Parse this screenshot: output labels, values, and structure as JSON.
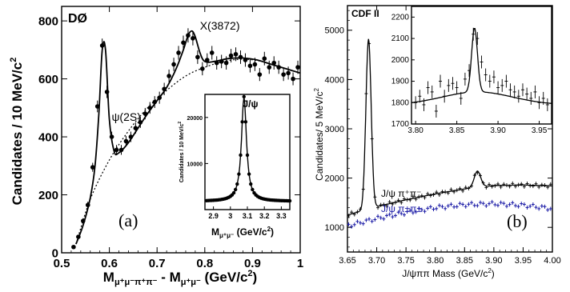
{
  "chart_data": [
    {
      "type": "scatter",
      "experiment": "DØ",
      "xlabel_main": "M",
      "xlabel_sub1": "μ⁺μ⁻π⁺π⁻",
      "xlabel_sep": " - M",
      "xlabel_sub2": "μ⁺μ⁻",
      "xlabel_unit": " (GeV/c",
      "xlabel_sup": "2",
      "xlabel_close": ")",
      "ylabel": "Candidates / 10 MeV/c",
      "ylabel_sup": "2",
      "panel_label": "(a)",
      "xlim": [
        0.5,
        1.0
      ],
      "ylim": [
        0,
        850
      ],
      "x_ticks": [
        "0.5",
        "0.6",
        "0.7",
        "0.8",
        "0.9",
        "1"
      ],
      "y_ticks": [
        "0",
        "200",
        "400",
        "600",
        "800"
      ],
      "x_tick_values": [
        0.5,
        0.6,
        0.7,
        0.8,
        0.9,
        1.0
      ],
      "y_tick_values": [
        0,
        200,
        400,
        600,
        800
      ],
      "annotations": [
        {
          "text": "ψ(2S)",
          "x": 0.588,
          "y": 455
        },
        {
          "text": "X(3872)",
          "x": 0.773,
          "y": 770
        }
      ],
      "series": [
        {
          "values_x": [
            0.525,
            0.535,
            0.545,
            0.555,
            0.565,
            0.575,
            0.585,
            0.595,
            0.605,
            0.615,
            0.625,
            0.635,
            0.645,
            0.655,
            0.665,
            0.675,
            0.685,
            0.695,
            0.705,
            0.715,
            0.725,
            0.735,
            0.745,
            0.755,
            0.765,
            0.775,
            0.785,
            0.795,
            0.805,
            0.815,
            0.825,
            0.835,
            0.845,
            0.855,
            0.865,
            0.875,
            0.885,
            0.895,
            0.905,
            0.915,
            0.925,
            0.935,
            0.945,
            0.955,
            0.965,
            0.975,
            0.985,
            0.995
          ],
          "values_y": [
            20,
            55,
            110,
            165,
            295,
            505,
            715,
            555,
            400,
            355,
            355,
            385,
            400,
            430,
            450,
            480,
            500,
            520,
            535,
            565,
            610,
            650,
            690,
            725,
            750,
            740,
            675,
            635,
            665,
            690,
            655,
            660,
            655,
            680,
            685,
            675,
            665,
            645,
            650,
            615,
            670,
            640,
            655,
            640,
            615,
            620,
            600,
            640
          ]
        }
      ],
      "fit_x": [
        0.53,
        0.545,
        0.56,
        0.57,
        0.578,
        0.585,
        0.592,
        0.6,
        0.61,
        0.62,
        0.64,
        0.66,
        0.68,
        0.7,
        0.72,
        0.74,
        0.755,
        0.765,
        0.773,
        0.78,
        0.79,
        0.8,
        0.82,
        0.85,
        0.88,
        0.91,
        0.94,
        0.97,
        1.0
      ],
      "fit_y": [
        30,
        95,
        190,
        300,
        480,
        700,
        700,
        460,
        350,
        345,
        380,
        430,
        480,
        525,
        570,
        635,
        700,
        750,
        765,
        745,
        690,
        660,
        660,
        670,
        672,
        665,
        650,
        635,
        620
      ],
      "bg_x": [
        0.53,
        0.56,
        0.6,
        0.64,
        0.68,
        0.72,
        0.76,
        0.8,
        0.84,
        0.88,
        0.92,
        0.96,
        1.0
      ],
      "bg_y": [
        30,
        185,
        320,
        420,
        500,
        560,
        610,
        640,
        660,
        668,
        660,
        640,
        620
      ],
      "inset": {
        "title": "J/ψ",
        "ylabel": "Candidates / 10 MeV/c",
        "ylabel_sup": "2",
        "xlabel_main": "M",
        "xlabel_sub": "μ⁺μ⁻",
        "xlabel_unit": " (GeV/c",
        "xlabel_sup": "2",
        "xlabel_close": ")",
        "xlim": [
          2.85,
          3.35
        ],
        "ylim": [
          0,
          25000
        ],
        "x_ticks": [
          "2.9",
          "3",
          "3.1",
          "3.2",
          "3.3"
        ],
        "x_tick_values": [
          2.9,
          3.0,
          3.1,
          3.2,
          3.3
        ],
        "y_ticks": [
          "10000",
          "20000"
        ],
        "y_tick_values": [
          10000,
          20000
        ],
        "peak": 3.08,
        "peak_height": 24500,
        "width": 0.045,
        "base": 1800
      }
    },
    {
      "type": "scatter",
      "experiment": "CDF II",
      "xlabel": "J/ψππ Mass  (GeV/c",
      "xlabel_sup": "2",
      "xlabel_close": ")",
      "ylabel": "Candidates/ 5 MeV/c",
      "ylabel_sup": "2",
      "panel_label": "(b)",
      "xlim": [
        3.65,
        4.0
      ],
      "ylim": [
        500,
        5500
      ],
      "x_ticks": [
        "3.65",
        "3.70",
        "3.75",
        "3.80",
        "3.85",
        "3.90",
        "3.95",
        "4.00"
      ],
      "x_tick_values": [
        3.65,
        3.7,
        3.75,
        3.8,
        3.85,
        3.9,
        3.95,
        4.0
      ],
      "y_ticks": [
        "1000",
        "2000",
        "3000",
        "4000",
        "5000"
      ],
      "y_tick_values": [
        1000,
        2000,
        3000,
        4000,
        5000
      ],
      "series": [
        {
          "name": "J/ψ π⁺π⁻",
          "color": "#000000"
        },
        {
          "name": "J/ψ π±π±",
          "color": "#1a1aa6"
        }
      ],
      "os_bg": [
        [
          3.65,
          1250
        ],
        [
          3.7,
          1420
        ],
        [
          3.75,
          1560
        ],
        [
          3.8,
          1680
        ],
        [
          3.85,
          1780
        ],
        [
          3.9,
          1850
        ],
        [
          3.95,
          1860
        ],
        [
          4.0,
          1840
        ]
      ],
      "os_peaks": [
        {
          "x": 3.686,
          "h": 3450,
          "w": 0.0045
        },
        {
          "x": 3.872,
          "h": 330,
          "w": 0.0055
        }
      ],
      "ss_base": [
        [
          3.65,
          1030
        ],
        [
          3.7,
          1180
        ],
        [
          3.75,
          1300
        ],
        [
          3.8,
          1400
        ],
        [
          3.85,
          1460
        ],
        [
          3.9,
          1480
        ],
        [
          3.95,
          1450
        ],
        [
          4.0,
          1380
        ]
      ],
      "inset": {
        "xlim": [
          3.795,
          3.965
        ],
        "ylim": [
          1700,
          2250
        ],
        "x_ticks": [
          "3.80",
          "3.85",
          "3.90",
          "3.95"
        ],
        "x_tick_values": [
          3.8,
          3.85,
          3.9,
          3.95
        ],
        "y_ticks": [
          "1700",
          "1800",
          "1900",
          "2000",
          "2100",
          "2200"
        ],
        "y_tick_values": [
          1700,
          1800,
          1900,
          2000,
          2100,
          2200
        ],
        "data_x": [
          3.8,
          3.805,
          3.81,
          3.815,
          3.82,
          3.825,
          3.83,
          3.835,
          3.84,
          3.845,
          3.85,
          3.855,
          3.86,
          3.865,
          3.87,
          3.875,
          3.88,
          3.885,
          3.89,
          3.895,
          3.9,
          3.905,
          3.91,
          3.915,
          3.92,
          3.925,
          3.93,
          3.935,
          3.94,
          3.945,
          3.95,
          3.955,
          3.96
        ],
        "data_y": [
          1800,
          1830,
          1790,
          1870,
          1850,
          1760,
          1900,
          1830,
          1880,
          1890,
          1870,
          1820,
          1910,
          1950,
          2120,
          2100,
          1990,
          1930,
          1900,
          1920,
          1870,
          1880,
          1900,
          1860,
          1850,
          1830,
          1860,
          1840,
          1820,
          1850,
          1800,
          1820,
          1790
        ]
      }
    }
  ]
}
